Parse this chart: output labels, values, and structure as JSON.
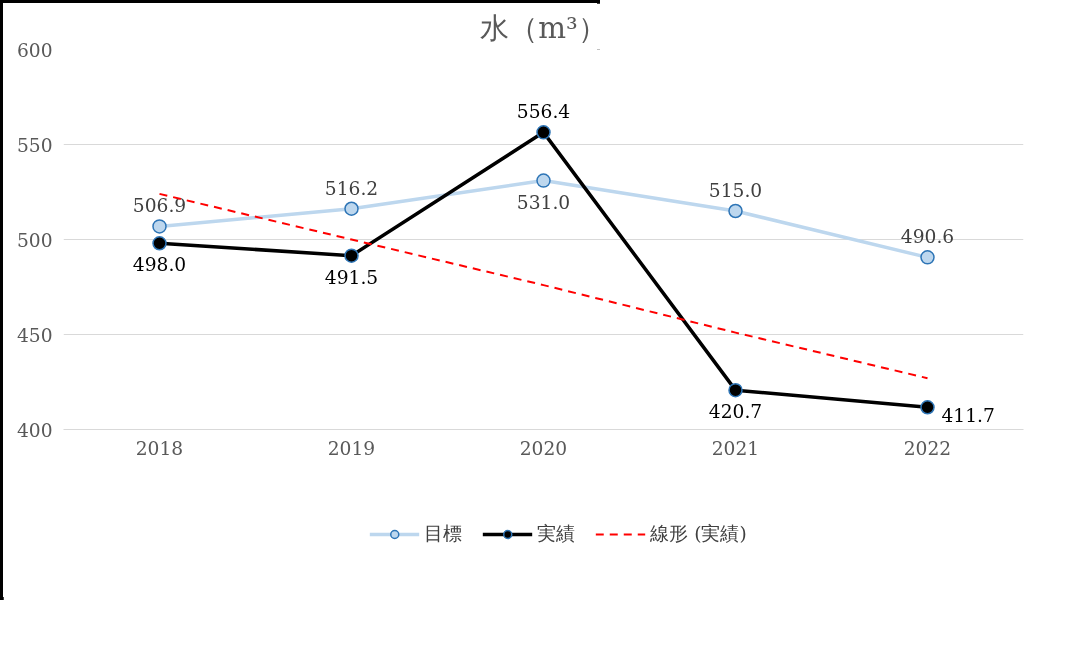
{
  "chart_data": {
    "type": "line",
    "title": "水（m³）",
    "categories": [
      "2018",
      "2019",
      "2020",
      "2021",
      "2022"
    ],
    "series": [
      {
        "name": "目標",
        "color": "#bdd7ee",
        "values": [
          506.9,
          516.2,
          531.0,
          515.0,
          490.6
        ],
        "value_labels": [
          "506.9",
          "516.2",
          "531.0",
          "515.0",
          "490.6"
        ]
      },
      {
        "name": "実績",
        "color": "#000000",
        "values": [
          498.0,
          491.5,
          556.4,
          420.7,
          411.7
        ],
        "value_labels": [
          "498.0",
          "491.5",
          "556.4",
          "420.7",
          "411.7"
        ]
      },
      {
        "name": "線形 (実績)",
        "color": "#ff0000",
        "line_style": "dashed",
        "marker": "none",
        "values": [
          524,
          500,
          476,
          451,
          427
        ]
      }
    ],
    "ylim": [
      400,
      600
    ],
    "yticks": [
      400,
      450,
      500,
      550,
      600
    ],
    "grid": "y",
    "legend": "bottom",
    "marker": "circle"
  }
}
